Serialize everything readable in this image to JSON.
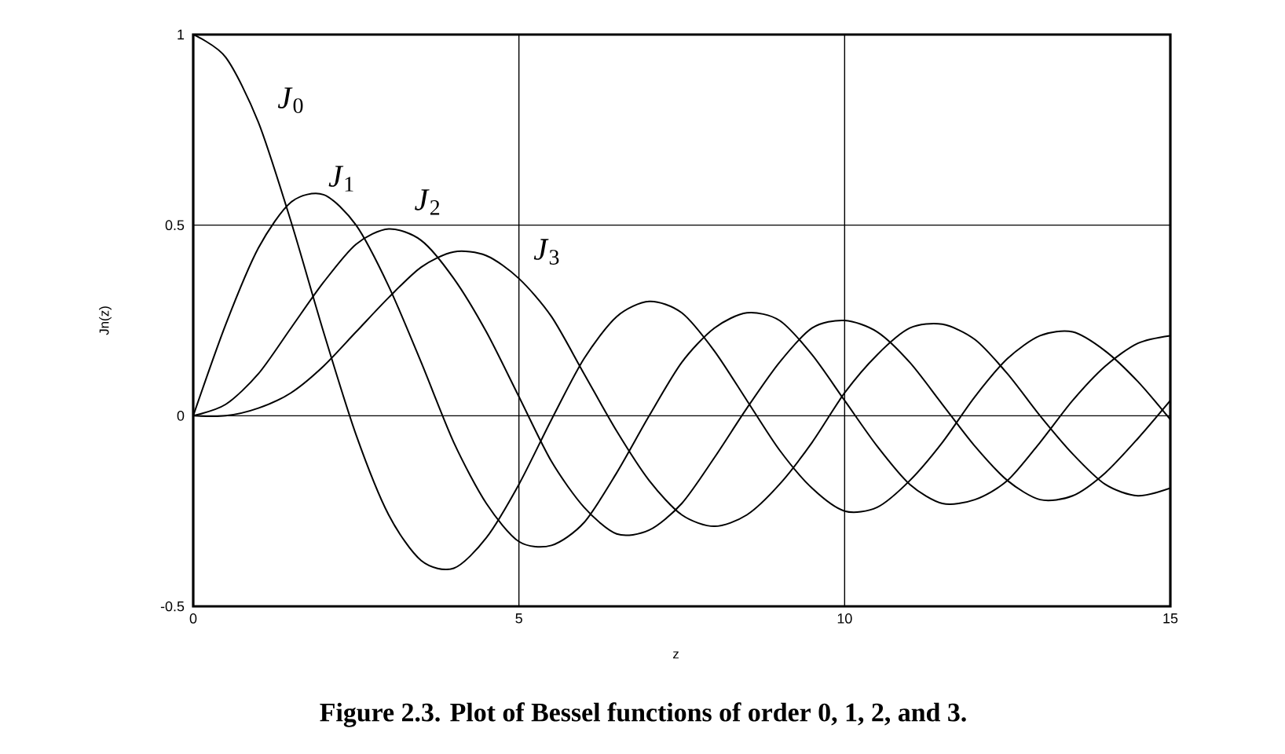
{
  "chart_data": {
    "type": "line",
    "xlabel": "z",
    "ylabel": "Jn(z)",
    "annotations": [
      "Figure 2.3. Plot of Bessel functions of order 0, 1, 2, and 3."
    ],
    "x": [
      0,
      0.5,
      1,
      1.5,
      2,
      2.5,
      3,
      3.5,
      4,
      4.5,
      5,
      5.5,
      6,
      6.5,
      7,
      7.5,
      8,
      8.5,
      9,
      9.5,
      10,
      10.5,
      11,
      11.5,
      12,
      12.5,
      13,
      13.5,
      14,
      14.5,
      15
    ],
    "series": [
      {
        "name": "*J*$_{0}$",
        "color": "#000000",
        "values": [
          1,
          0.94,
          0.77,
          0.51,
          0.22,
          -0.05,
          -0.26,
          -0.38,
          -0.4,
          -0.32,
          -0.18,
          -0.01,
          0.15,
          0.26,
          0.3,
          0.27,
          0.17,
          0.04,
          -0.09,
          -0.19,
          -0.25,
          -0.24,
          -0.17,
          -0.07,
          0.05,
          0.15,
          0.21,
          0.22,
          0.17,
          0.09,
          -0.01
        ]
      },
      {
        "name": "*J*$_{1}$",
        "color": "#000000",
        "values": [
          0,
          0.24,
          0.44,
          0.56,
          0.58,
          0.5,
          0.34,
          0.14,
          -0.07,
          -0.23,
          -0.33,
          -0.34,
          -0.28,
          -0.15,
          0.0,
          0.14,
          0.23,
          0.27,
          0.25,
          0.16,
          0.04,
          -0.08,
          -0.18,
          -0.23,
          -0.22,
          -0.17,
          -0.07,
          0.04,
          0.13,
          0.19,
          0.21
        ]
      },
      {
        "name": "*J*$_{2}$",
        "color": "#000000",
        "values": [
          0,
          0.03,
          0.11,
          0.23,
          0.35,
          0.45,
          0.49,
          0.46,
          0.36,
          0.22,
          0.05,
          -0.12,
          -0.24,
          -0.31,
          -0.3,
          -0.23,
          -0.11,
          0.02,
          0.14,
          0.23,
          0.25,
          0.22,
          0.14,
          0.03,
          -0.08,
          -0.17,
          -0.22,
          -0.21,
          -0.15,
          -0.06,
          0.04
        ]
      },
      {
        "name": "*J*$_{3}$",
        "color": "#000000",
        "values": [
          0,
          0.0,
          0.02,
          0.06,
          0.13,
          0.22,
          0.31,
          0.39,
          0.43,
          0.42,
          0.36,
          0.26,
          0.11,
          -0.04,
          -0.17,
          -0.26,
          -0.29,
          -0.26,
          -0.18,
          -0.07,
          0.06,
          0.16,
          0.23,
          0.24,
          0.2,
          0.11,
          0.0,
          -0.1,
          -0.18,
          -0.21,
          -0.19
        ]
      }
    ],
    "xlim": [
      0,
      15
    ],
    "ylim": [
      -0.5,
      1
    ],
    "xticks": [
      0,
      5,
      10,
      15
    ],
    "yticks": [
      -0.5,
      0,
      0.5,
      1
    ],
    "grid": true
  }
}
